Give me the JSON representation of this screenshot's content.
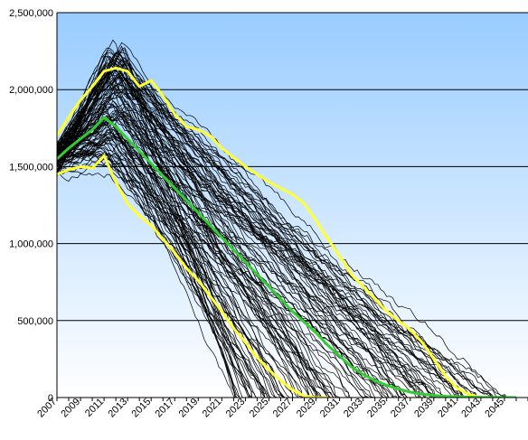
{
  "chart_data": {
    "type": "line",
    "title": "",
    "xlabel": "",
    "ylabel": "",
    "xlim": [
      2007,
      2047
    ],
    "ylim": [
      0,
      2500000
    ],
    "grid": true,
    "legend": "none",
    "y_ticks": [
      0,
      500000,
      1000000,
      1500000,
      2000000,
      2500000
    ],
    "y_tick_labels": [
      "0",
      "500,000",
      "1,000,000",
      "1,500,000",
      "2,000,000",
      "2,500,000"
    ],
    "x_tick_labels": [
      "2007",
      "2009",
      "2011",
      "2013",
      "2015",
      "2017",
      "2019",
      "2021",
      "2023",
      "2025",
      "2027",
      "2029",
      "2031",
      "2033",
      "2035",
      "2037",
      "2039",
      "2041",
      "2043",
      "2045"
    ],
    "colors": {
      "plot_bg_top": "#99ccff",
      "plot_bg_bottom": "#ffffff",
      "simulation": "#000000",
      "bounds": "#ffff33",
      "mean": "#33cc33"
    },
    "simulations": {
      "count": 110,
      "color": "#000000",
      "start_range": [
        1450000,
        1650000
      ],
      "peak_year_range": [
        2011,
        2013
      ],
      "peak_range": [
        1450000,
        2300000
      ],
      "zero_year_range": [
        2022,
        2046
      ]
    },
    "series": [
      {
        "role": "upper-bound",
        "color": "#ffff33",
        "x": [
          2007,
          2008,
          2009,
          2010,
          2011,
          2012,
          2013,
          2014,
          2015,
          2016,
          2017,
          2018,
          2019,
          2020,
          2021,
          2022,
          2023,
          2024,
          2025,
          2026,
          2027,
          2028,
          2029,
          2030,
          2031,
          2032,
          2033,
          2034,
          2035,
          2036,
          2037,
          2038,
          2039,
          2040,
          2041,
          2042,
          2043
        ],
        "values": [
          1700000,
          1820000,
          1930000,
          2020000,
          2120000,
          2140000,
          2120000,
          2020000,
          2060000,
          1960000,
          1840000,
          1760000,
          1740000,
          1700000,
          1620000,
          1560000,
          1500000,
          1450000,
          1400000,
          1360000,
          1320000,
          1260000,
          1150000,
          1030000,
          920000,
          800000,
          720000,
          640000,
          560000,
          500000,
          440000,
          360000,
          250000,
          140000,
          60000,
          20000,
          0
        ]
      },
      {
        "role": "mean",
        "color": "#33cc33",
        "x": [
          2007,
          2008,
          2009,
          2010,
          2011,
          2012,
          2013,
          2014,
          2015,
          2016,
          2017,
          2018,
          2019,
          2020,
          2021,
          2022,
          2023,
          2024,
          2025,
          2026,
          2027,
          2028,
          2029,
          2030,
          2031,
          2032,
          2033,
          2034,
          2035,
          2036,
          2037,
          2038,
          2039,
          2040,
          2041,
          2042,
          2043,
          2044,
          2045,
          2046
        ],
        "values": [
          1550000,
          1620000,
          1680000,
          1740000,
          1820000,
          1760000,
          1680000,
          1600000,
          1520000,
          1440000,
          1360000,
          1280000,
          1200000,
          1120000,
          1040000,
          960000,
          880000,
          800000,
          720000,
          640000,
          560000,
          490000,
          420000,
          340000,
          270000,
          200000,
          150000,
          110000,
          80000,
          55000,
          35000,
          22000,
          14000,
          8000,
          5000,
          3000,
          2000,
          1000,
          500,
          0
        ]
      },
      {
        "role": "lower-bound",
        "color": "#ffff33",
        "x": [
          2007,
          2008,
          2009,
          2010,
          2011,
          2012,
          2013,
          2014,
          2015,
          2016,
          2017,
          2018,
          2019,
          2020,
          2021,
          2022,
          2023,
          2024,
          2025,
          2026,
          2027,
          2028,
          2029,
          2030
        ],
        "values": [
          1450000,
          1480000,
          1500000,
          1490000,
          1570000,
          1400000,
          1260000,
          1180000,
          1120000,
          1030000,
          940000,
          840000,
          760000,
          660000,
          560000,
          450000,
          360000,
          260000,
          180000,
          110000,
          50000,
          10000,
          0,
          0
        ]
      }
    ]
  }
}
